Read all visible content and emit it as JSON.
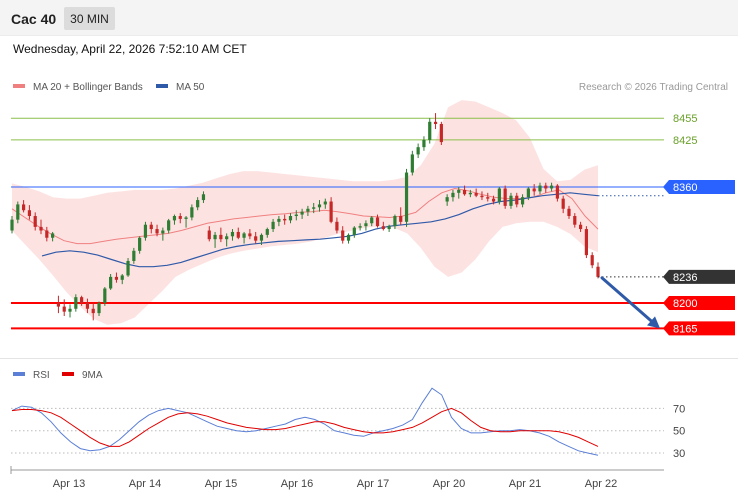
{
  "header": {
    "instrument": "Cac 40",
    "timeframe": "30 MIN",
    "datetime": "Wednesday, April 22, 2026 7:52:10 AM CET"
  },
  "legend": [
    {
      "label": "MA 20 + Bollinger Bands",
      "color": "#f08080"
    },
    {
      "label": "MA 50",
      "color": "#2f5aa8"
    }
  ],
  "copyright": "Research © 2026 Trading Central",
  "rsi_legend": [
    {
      "label": "RSI",
      "color": "#5b7fd6"
    },
    {
      "label": "9MA",
      "color": "#e00000"
    }
  ],
  "colors": {
    "up": "#2e7d32",
    "down": "#c62828",
    "resistance": "#8bbf4a",
    "pivot": "#2962ff",
    "support": "#ff0000",
    "band_fill": "#fde2e2",
    "arrow": "#2f5aa8"
  },
  "chart_data": [
    {
      "type": "candlestick",
      "title": "",
      "x_labels": [
        "Apr 13",
        "Apr 14",
        "Apr 15",
        "Apr 16",
        "Apr 17",
        "Apr 20",
        "Apr 21",
        "Apr 22"
      ],
      "ylim": [
        8142,
        8487
      ],
      "levels": [
        {
          "value": 8455,
          "label": "8455",
          "kind": "resistance"
        },
        {
          "value": 8425,
          "label": "8425",
          "kind": "resistance"
        },
        {
          "value": 8360,
          "label": "8360",
          "kind": "pivot"
        },
        {
          "value": 8200,
          "label": "8200",
          "kind": "support"
        },
        {
          "value": 8165,
          "label": "8165",
          "kind": "support"
        }
      ],
      "last_price": {
        "value": 8236,
        "label": "8236"
      },
      "projection": {
        "from": 8236,
        "to": 8165
      },
      "candles": [
        [
          8300,
          8320,
          8296,
          8315
        ],
        [
          8315,
          8340,
          8310,
          8336
        ],
        [
          8336,
          8342,
          8325,
          8328
        ],
        [
          8328,
          8335,
          8315,
          8320
        ],
        [
          8320,
          8325,
          8300,
          8305
        ],
        [
          8305,
          8315,
          8295,
          8300
        ],
        [
          8300,
          8305,
          8285,
          8290
        ],
        [
          8290,
          8298,
          8285,
          8296
        ],
        [
          8200,
          8210,
          8186,
          8195
        ],
        [
          8195,
          8205,
          8182,
          8188
        ],
        [
          8188,
          8198,
          8180,
          8192
        ],
        [
          8192,
          8212,
          8188,
          8208
        ],
        [
          8208,
          8210,
          8196,
          8200
        ],
        [
          8200,
          8206,
          8186,
          8192
        ],
        [
          8192,
          8200,
          8176,
          8186
        ],
        [
          8186,
          8202,
          8182,
          8200
        ],
        [
          8200,
          8222,
          8196,
          8220
        ],
        [
          8220,
          8240,
          8218,
          8236
        ],
        [
          8236,
          8242,
          8228,
          8232
        ],
        [
          8232,
          8240,
          8226,
          8238
        ],
        [
          8238,
          8262,
          8236,
          8258
        ],
        [
          8258,
          8276,
          8254,
          8272
        ],
        [
          8272,
          8292,
          8268,
          8290
        ],
        [
          8290,
          8312,
          8286,
          8308
        ],
        [
          8308,
          8312,
          8296,
          8302
        ],
        [
          8302,
          8308,
          8292,
          8296
        ],
        [
          8296,
          8304,
          8286,
          8300
        ],
        [
          8300,
          8316,
          8296,
          8314
        ],
        [
          8314,
          8322,
          8308,
          8320
        ],
        [
          8320,
          8324,
          8310,
          8316
        ],
        [
          8316,
          8320,
          8304,
          8318
        ],
        [
          8318,
          8336,
          8314,
          8332
        ],
        [
          8332,
          8346,
          8328,
          8342
        ],
        [
          8342,
          8354,
          8338,
          8350
        ],
        [
          8300,
          8306,
          8285,
          8288
        ],
        [
          8288,
          8298,
          8276,
          8294
        ],
        [
          8294,
          8304,
          8284,
          8288
        ],
        [
          8288,
          8296,
          8278,
          8292
        ],
        [
          8292,
          8302,
          8286,
          8298
        ],
        [
          8298,
          8304,
          8288,
          8290
        ],
        [
          8290,
          8298,
          8282,
          8296
        ],
        [
          8296,
          8302,
          8288,
          8292
        ],
        [
          8292,
          8298,
          8282,
          8286
        ],
        [
          8286,
          8296,
          8280,
          8294
        ],
        [
          8294,
          8304,
          8290,
          8302
        ],
        [
          8302,
          8316,
          8298,
          8312
        ],
        [
          8312,
          8320,
          8306,
          8316
        ],
        [
          8316,
          8322,
          8308,
          8314
        ],
        [
          8314,
          8324,
          8310,
          8320
        ],
        [
          8320,
          8328,
          8314,
          8322
        ],
        [
          8322,
          8330,
          8316,
          8326
        ],
        [
          8326,
          8334,
          8320,
          8330
        ],
        [
          8330,
          8338,
          8324,
          8332
        ],
        [
          8332,
          8342,
          8326,
          8336
        ],
        [
          8336,
          8344,
          8330,
          8340
        ],
        [
          8340,
          8346,
          8310,
          8312
        ],
        [
          8312,
          8318,
          8296,
          8300
        ],
        [
          8300,
          8306,
          8282,
          8286
        ],
        [
          8286,
          8296,
          8282,
          8294
        ],
        [
          8294,
          8306,
          8290,
          8304
        ],
        [
          8304,
          8310,
          8300,
          8306
        ],
        [
          8306,
          8314,
          8300,
          8310
        ],
        [
          8310,
          8320,
          8306,
          8318
        ],
        [
          8318,
          8322,
          8304,
          8306
        ],
        [
          8306,
          8312,
          8300,
          8302
        ],
        [
          8302,
          8308,
          8298,
          8306
        ],
        [
          8306,
          8322,
          8302,
          8320
        ],
        [
          8320,
          8332,
          8308,
          8312
        ],
        [
          8312,
          8385,
          8305,
          8380
        ],
        [
          8380,
          8410,
          8376,
          8405
        ],
        [
          8405,
          8420,
          8400,
          8415
        ],
        [
          8415,
          8430,
          8410,
          8425
        ],
        [
          8425,
          8455,
          8420,
          8450
        ],
        [
          8450,
          8462,
          8440,
          8447
        ],
        [
          8447,
          8450,
          8418,
          8422
        ],
        [
          8340,
          8350,
          8334,
          8346
        ],
        [
          8346,
          8356,
          8340,
          8352
        ],
        [
          8352,
          8360,
          8344,
          8356
        ],
        [
          8356,
          8362,
          8348,
          8350
        ],
        [
          8350,
          8356,
          8346,
          8352
        ],
        [
          8352,
          8358,
          8346,
          8348
        ],
        [
          8348,
          8354,
          8342,
          8346
        ],
        [
          8346,
          8352,
          8340,
          8344
        ],
        [
          8344,
          8348,
          8336,
          8340
        ],
        [
          8340,
          8360,
          8336,
          8358
        ],
        [
          8358,
          8362,
          8330,
          8334
        ],
        [
          8334,
          8352,
          8330,
          8348
        ],
        [
          8348,
          8352,
          8332,
          8336
        ],
        [
          8336,
          8350,
          8332,
          8346
        ],
        [
          8346,
          8360,
          8342,
          8358
        ],
        [
          8358,
          8364,
          8348,
          8354
        ],
        [
          8354,
          8366,
          8350,
          8362
        ],
        [
          8362,
          8366,
          8352,
          8358
        ],
        [
          8358,
          8366,
          8354,
          8362
        ],
        [
          8362,
          8364,
          8340,
          8344
        ],
        [
          8344,
          8348,
          8324,
          8330
        ],
        [
          8330,
          8334,
          8316,
          8320
        ],
        [
          8320,
          8324,
          8304,
          8308
        ],
        [
          8308,
          8312,
          8298,
          8302
        ],
        [
          8302,
          8306,
          8262,
          8266
        ],
        [
          8266,
          8270,
          8248,
          8252
        ],
        [
          8250,
          8256,
          8234,
          8236
        ]
      ],
      "ma20": [
        8330,
        8318,
        8306,
        8295,
        8286,
        8282,
        8282,
        8285,
        8288,
        8290,
        8292,
        8294,
        8296,
        8300,
        8305,
        8310,
        8313,
        8316,
        8318,
        8320,
        8322,
        8323,
        8325,
        8326,
        8328,
        8326,
        8323,
        8320,
        8319,
        8318,
        8320,
        8325,
        8340,
        8352,
        8358,
        8355,
        8350,
        8346,
        8344,
        8344,
        8346,
        8352,
        8356,
        8344,
        8320,
        8302
      ],
      "upper_band": [
        8365,
        8360,
        8354,
        8346,
        8344,
        8344,
        8348,
        8352,
        8354,
        8356,
        8356,
        8356,
        8358,
        8362,
        8366,
        8372,
        8378,
        8382,
        8382,
        8380,
        8378,
        8376,
        8374,
        8372,
        8370,
        8368,
        8368,
        8368,
        8370,
        8374,
        8390,
        8420,
        8470,
        8480,
        8478,
        8470,
        8462,
        8452,
        8428,
        8385,
        8368,
        8370,
        8384,
        8390
      ],
      "lower_band": [
        8300,
        8280,
        8260,
        8238,
        8215,
        8195,
        8178,
        8170,
        8172,
        8180,
        8198,
        8216,
        8236,
        8246,
        8254,
        8262,
        8268,
        8272,
        8275,
        8278,
        8280,
        8282,
        8285,
        8290,
        8296,
        8300,
        8304,
        8306,
        8304,
        8296,
        8276,
        8250,
        8236,
        8242,
        8260,
        8285,
        8305,
        8310,
        8312,
        8312,
        8305,
        8295,
        8278,
        8270
      ],
      "ma50": [
        8265,
        8270,
        8272,
        8270,
        8266,
        8260,
        8254,
        8250,
        8250,
        8252,
        8256,
        8262,
        8268,
        8274,
        8278,
        8281,
        8283,
        8285,
        8286,
        8287,
        8288,
        8290,
        8292,
        8296,
        8302,
        8306,
        8308,
        8310,
        8312,
        8316,
        8322,
        8330,
        8336,
        8340,
        8342,
        8345,
        8348,
        8350,
        8352,
        8350,
        8348
      ],
      "rsi_line": [
        68,
        72,
        71,
        66,
        58,
        48,
        40,
        34,
        32,
        33,
        36,
        42,
        50,
        58,
        64,
        68,
        70,
        68,
        66,
        62,
        58,
        54,
        52,
        50,
        49,
        50,
        52,
        54,
        56,
        60,
        62,
        60,
        56,
        50,
        48,
        46,
        45,
        48,
        50,
        52,
        55,
        60,
        75,
        88,
        82,
        62,
        52,
        48,
        48,
        49,
        50,
        50,
        51,
        50,
        48,
        45,
        40,
        36,
        32,
        30,
        28
      ],
      "rsi_ma": [
        68,
        69,
        69,
        68,
        66,
        62,
        56,
        50,
        44,
        39,
        36,
        36,
        40,
        46,
        52,
        57,
        62,
        65,
        66,
        65,
        63,
        60,
        57,
        55,
        53,
        52,
        51,
        51,
        52,
        54,
        56,
        58,
        58,
        56,
        53,
        51,
        49,
        48,
        48,
        49,
        51,
        53,
        57,
        62,
        67,
        70,
        66,
        59,
        53,
        50,
        49,
        49,
        50,
        50,
        50,
        50,
        49,
        47,
        44,
        40,
        36
      ],
      "rsi_levels": [
        70,
        50,
        30
      ],
      "rsi_ylim": [
        22,
        90
      ]
    }
  ]
}
